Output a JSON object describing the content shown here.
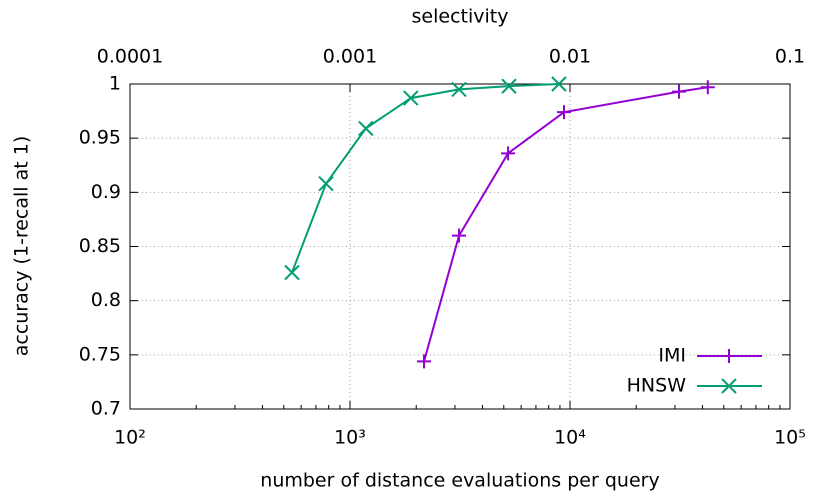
{
  "chart_data": {
    "type": "line",
    "x_label": "number of distance evaluations per query",
    "y_label": "accuracy (1-recall at 1)",
    "x2_label": "selectivity",
    "xscale": "log",
    "xlim": [
      100,
      100000
    ],
    "xticks": [
      {
        "value": 100,
        "label": "10²"
      },
      {
        "value": 1000,
        "label": "10³"
      },
      {
        "value": 10000,
        "label": "10⁴"
      },
      {
        "value": 100000,
        "label": "10⁵"
      }
    ],
    "x2lim": [
      0.0001,
      0.1
    ],
    "x2ticks": [
      0.0001,
      0.001,
      0.01,
      0.1
    ],
    "ylim": [
      0.7,
      1
    ],
    "yticks": [
      0.7,
      0.75,
      0.8,
      0.85,
      0.9,
      0.95,
      1
    ],
    "grid": true,
    "legend": "lower right",
    "series": [
      {
        "name": "IMI",
        "color": "#9400d3",
        "marker": "plus",
        "x": [
          2170,
          3130,
          5230,
          9390,
          31300,
          42300
        ],
        "values": [
          0.744,
          0.86,
          0.936,
          0.974,
          0.993,
          0.997
        ]
      },
      {
        "name": "HNSW",
        "color": "#009e73",
        "marker": "cross",
        "x": [
          545,
          778,
          1180,
          1890,
          3130,
          5280,
          8910
        ],
        "values": [
          0.826,
          0.908,
          0.959,
          0.987,
          0.995,
          0.998,
          1.0
        ]
      }
    ]
  }
}
